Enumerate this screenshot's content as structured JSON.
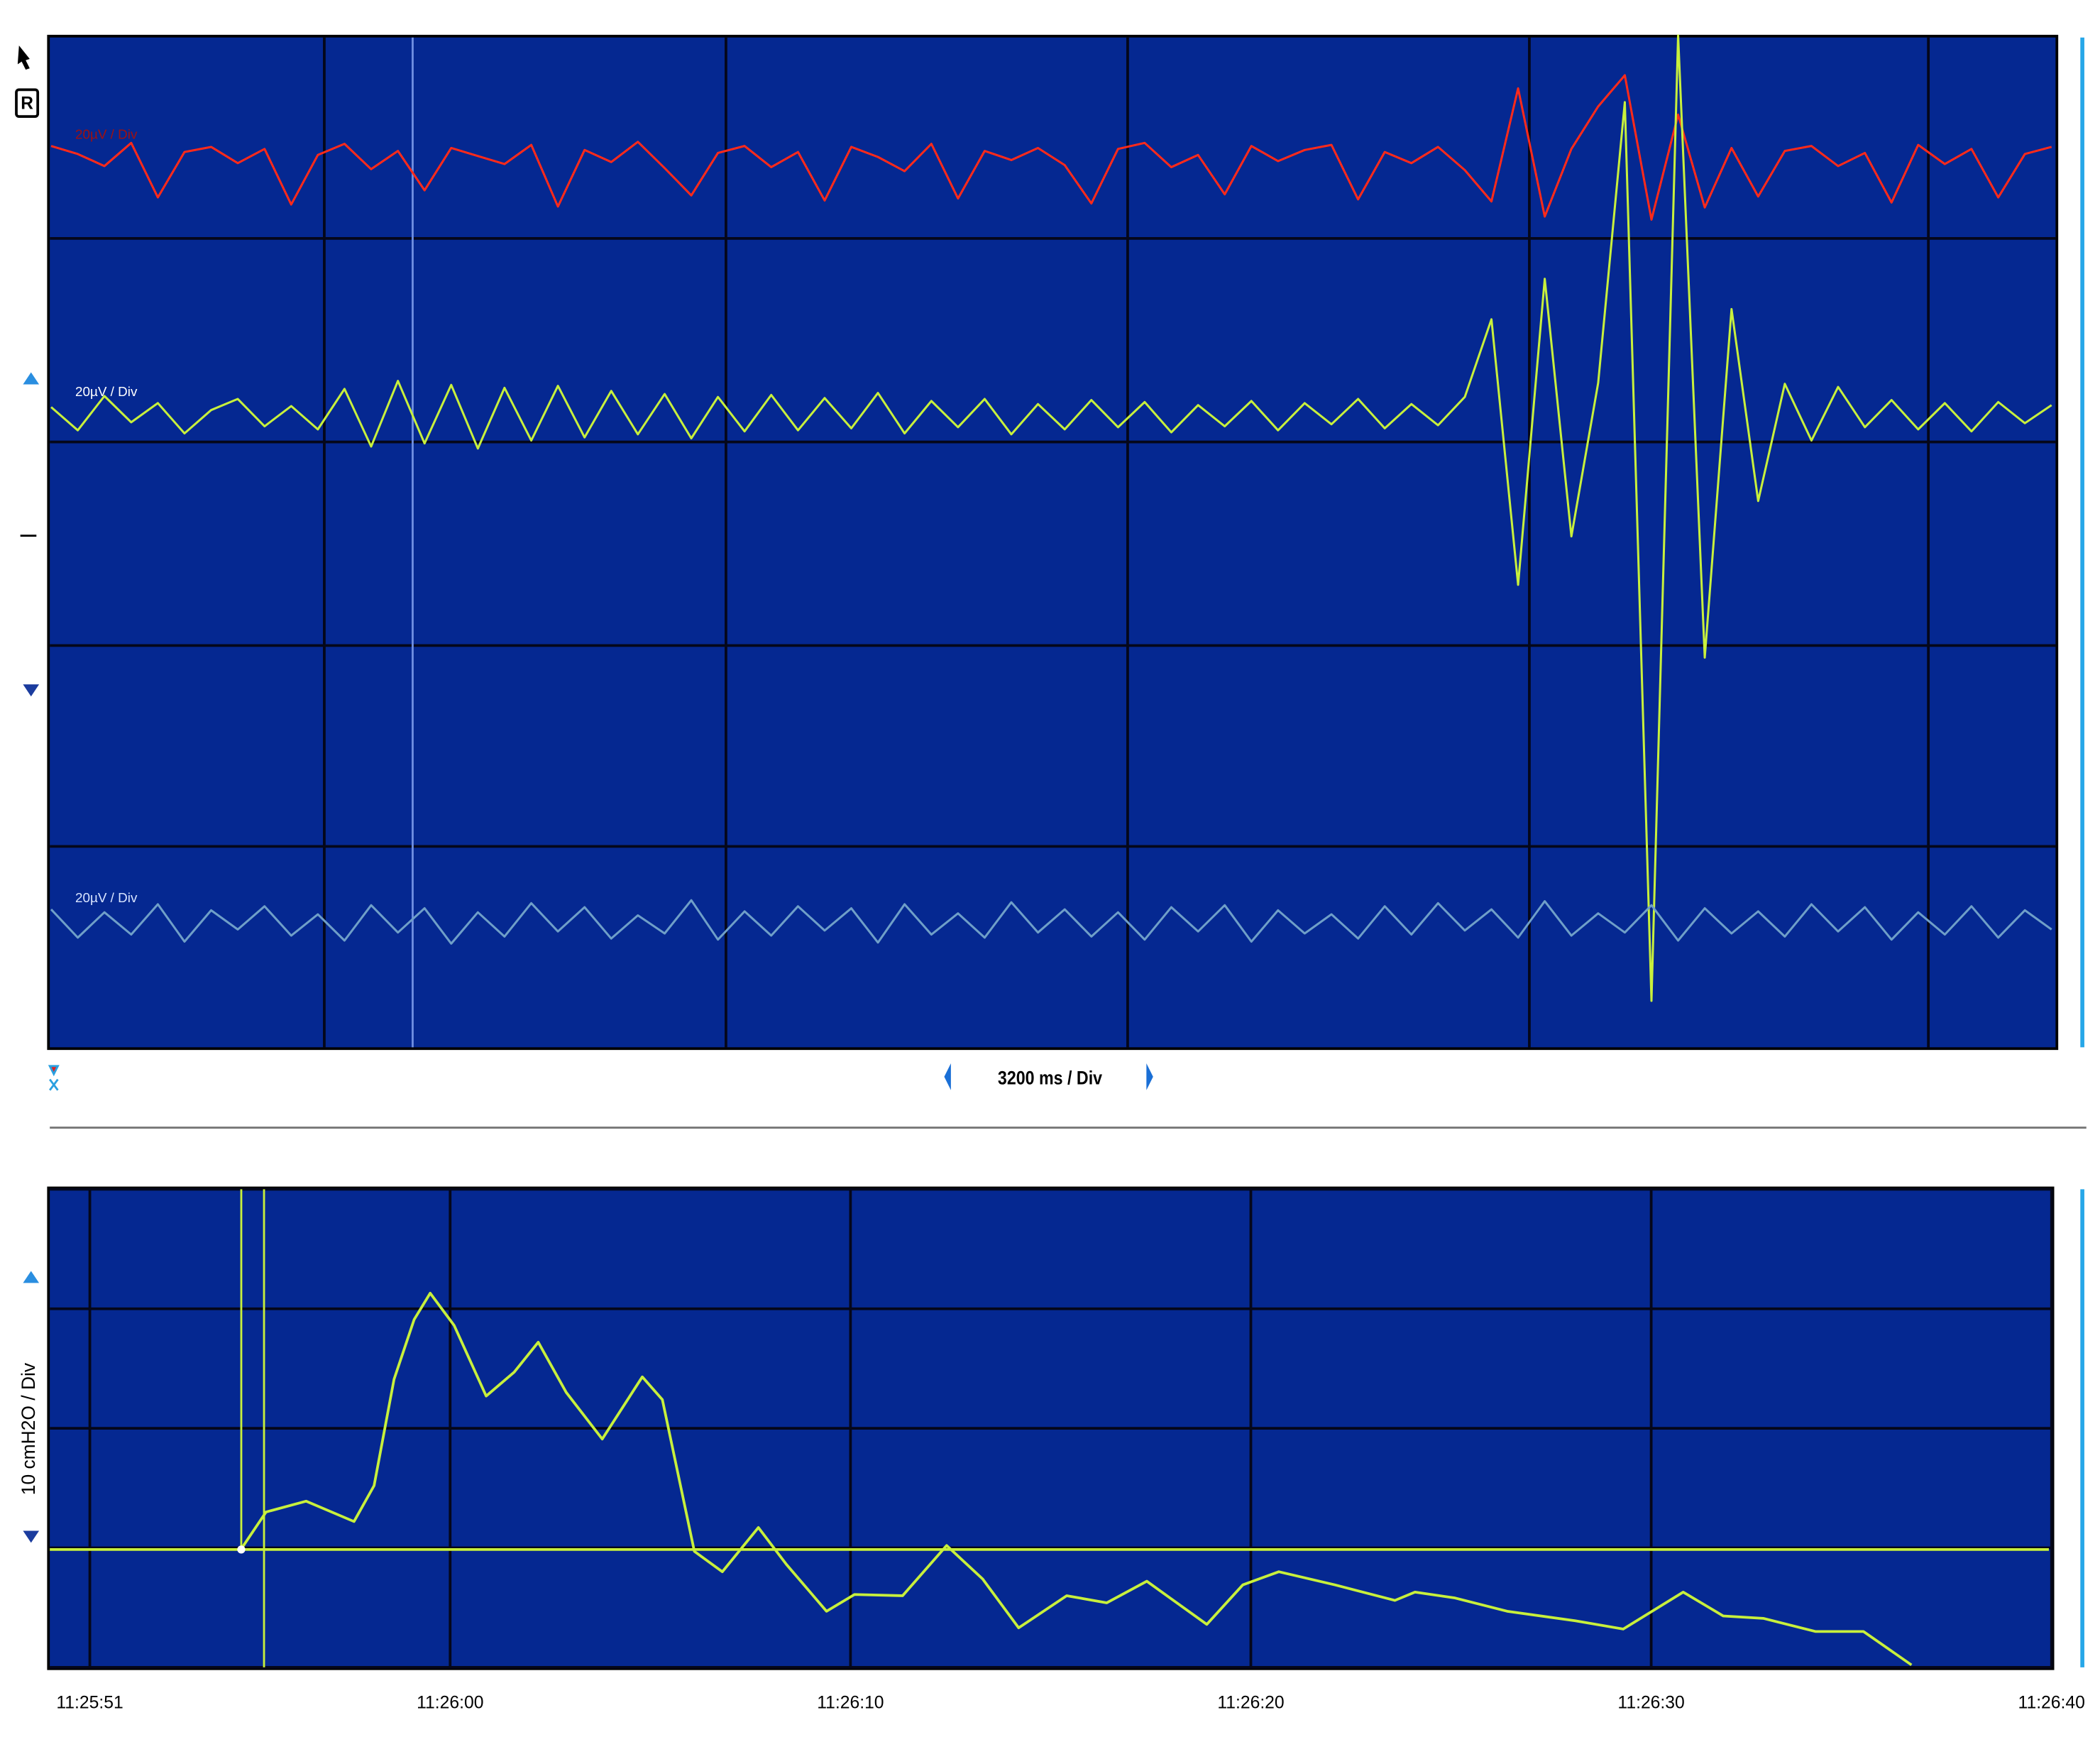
{
  "toolbar": {
    "record_button": "R"
  },
  "chart_data": [
    {
      "type": "line",
      "x_label": "3200 ms / Div",
      "series": [
        {
          "name": "20µV / Div",
          "color": "#ff2a1a",
          "values": [
            1.2,
            0.4,
            -0.8,
            1.5,
            -3.9,
            0.6,
            1.1,
            -0.5,
            0.9,
            -4.6,
            0.3,
            1.4,
            -1.1,
            0.7,
            -3.2,
            1.0,
            0.2,
            -0.6,
            1.3,
            -4.8,
            0.8,
            -0.4,
            1.6,
            -1.0,
            -3.7,
            0.5,
            1.2,
            -0.9,
            0.6,
            -4.2,
            1.1,
            0.1,
            -1.3,
            1.4,
            -4.0,
            0.7,
            -0.2,
            1.0,
            -0.7,
            -4.5,
            0.9,
            1.5,
            -0.9,
            0.3,
            -3.6,
            1.2,
            -0.3,
            0.8,
            1.3,
            -4.1,
            0.6,
            -0.5,
            1.1,
            -1.2,
            -4.3,
            6.9,
            -5.8,
            0.9,
            5.1,
            8.2,
            -6.1,
            4.3,
            -4.9,
            1.0,
            -3.8,
            0.7,
            1.2,
            -0.8,
            0.5,
            -4.4,
            1.3,
            -0.6,
            0.9,
            -3.9,
            0.4,
            1.1
          ]
        },
        {
          "name": "20µV / Div",
          "color": "#c8f03c",
          "values": [
            0.8,
            -1.5,
            1.9,
            -0.7,
            1.2,
            -1.8,
            0.5,
            1.6,
            -1.1,
            0.9,
            -1.4,
            2.6,
            -3.1,
            3.4,
            -2.8,
            3.0,
            -3.3,
            2.7,
            -2.5,
            2.9,
            -2.2,
            2.4,
            -1.9,
            2.1,
            -2.3,
            1.8,
            -1.6,
            2.0,
            -1.5,
            1.7,
            -1.3,
            2.2,
            -1.8,
            1.4,
            -1.2,
            1.6,
            -1.9,
            1.1,
            -1.4,
            1.5,
            -1.2,
            1.3,
            -1.7,
            1.0,
            -1.1,
            1.4,
            -1.5,
            1.2,
            -0.9,
            1.6,
            -1.3,
            1.1,
            -1.0,
            1.8,
            9.5,
            -16.8,
            13.5,
            -12.0,
            3.2,
            31.0,
            -58.0,
            37.6,
            -24.0,
            10.5,
            -8.5,
            3.1,
            -2.5,
            2.8,
            -1.2,
            1.5,
            -1.4,
            1.2,
            -1.6,
            1.3,
            -0.8,
            1.0
          ]
        },
        {
          "name": "20µV / Div",
          "color": "#6f9fc8",
          "values": [
            1.2,
            -1.6,
            0.9,
            -1.3,
            1.7,
            -2.0,
            1.1,
            -0.8,
            1.5,
            -1.4,
            0.7,
            -1.9,
            1.6,
            -1.1,
            1.3,
            -2.2,
            0.9,
            -1.5,
            1.8,
            -1.0,
            1.4,
            -1.7,
            0.6,
            -1.2,
            2.1,
            -1.8,
            1.0,
            -1.4,
            1.5,
            -0.9,
            1.3,
            -2.1,
            1.7,
            -1.3,
            0.8,
            -1.6,
            1.9,
            -1.1,
            1.2,
            -1.5,
            0.9,
            -1.8,
            1.4,
            -1.0,
            1.6,
            -2.0,
            1.1,
            -1.2,
            0.7,
            -1.7,
            1.5,
            -1.3,
            1.8,
            -0.9,
            1.2,
            -1.6,
            2.0,
            -1.4,
            0.8,
            -1.1,
            1.6,
            -1.9,
            1.3,
            -1.2,
            1.0,
            -1.5,
            1.7,
            -1.0,
            1.4,
            -1.8,
            0.9,
            -1.3,
            1.5,
            -1.6,
            1.1,
            -0.8
          ]
        }
      ]
    },
    {
      "type": "line",
      "y_label": "10 cmH2O / Div",
      "color": "#c8f03c",
      "grid": true,
      "x": [
        41154.8,
        41155.4,
        41156.4,
        41157.6,
        41158.1,
        41158.6,
        41159.1,
        41159.5,
        41160.1,
        41160.9,
        41161.6,
        41162.2,
        41162.9,
        41163.8,
        41164.8,
        41165.3,
        41166.1,
        41166.8,
        41167.7,
        41168.4,
        41169.4,
        41170.1,
        41171.3,
        41172.4,
        41173.3,
        41174.2,
        41175.4,
        41176.4,
        41177.4,
        41178.9,
        41179.8,
        41180.7,
        41182.1,
        41183.6,
        41184.1,
        41185.1,
        41186.4,
        41188.1,
        41189.3,
        41190.8,
        41191.8,
        41192.8,
        41194.1,
        41195.3,
        41196.5
      ],
      "values": [
        0,
        3.0,
        3.9,
        2.2,
        5.2,
        14.1,
        19.1,
        21.3,
        18.6,
        12.7,
        14.7,
        17.2,
        13.0,
        9.1,
        14.3,
        12.4,
        -0.3,
        -2.0,
        1.7,
        -1.4,
        -5.3,
        -3.9,
        -4.0,
        0.2,
        -2.6,
        -6.7,
        -4.0,
        -4.6,
        -2.8,
        -6.4,
        -3.1,
        -2.0,
        -3.1,
        -4.4,
        -3.7,
        -4.2,
        -5.3,
        -6.1,
        -6.8,
        -3.7,
        -5.7,
        -5.9,
        -7.0,
        -7.0,
        -9.8
      ],
      "xlim": [
        41150,
        41200
      ],
      "xticks": [
        {
          "value": 41151,
          "label": "11:25:51"
        },
        {
          "value": 41160,
          "label": "11:26:00"
        },
        {
          "value": 41170,
          "label": "11:26:10"
        },
        {
          "value": 41180,
          "label": "11:26:20"
        },
        {
          "value": 41190,
          "label": "11:26:30"
        },
        {
          "value": 41200,
          "label": "11:26:40"
        }
      ],
      "ylim": [
        -10,
        30
      ],
      "yticks": [
        -10,
        0,
        10,
        20,
        30
      ]
    }
  ]
}
